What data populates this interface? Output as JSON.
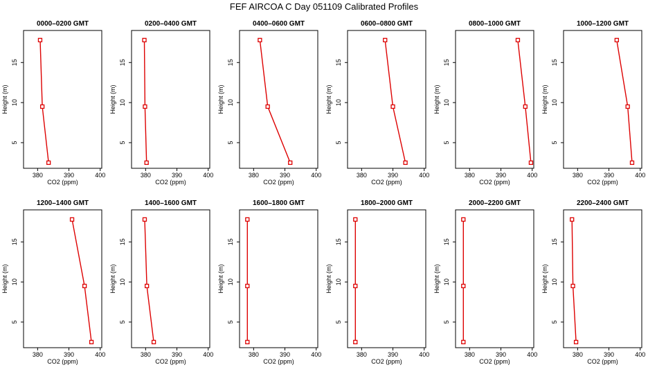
{
  "chart_data": {
    "type": "line",
    "title": "FEF AIRCOA C  Day 051109  Calibrated Profiles",
    "xlabel": "CO2 (ppm)",
    "ylabel": "Height (m)",
    "xlim": [
      375.5,
      400.5
    ],
    "ylim": [
      1.8,
      19
    ],
    "xticks": [
      "380",
      "390",
      "400"
    ],
    "yticks": [
      "5",
      "10",
      "15"
    ],
    "line_color": "#dd0000",
    "marker": "open-square",
    "grid": false,
    "panels": [
      {
        "title": "0000–0200 GMT",
        "x": [
          383.5,
          381.5,
          380.8
        ],
        "y": [
          2.5,
          9.5,
          17.8
        ]
      },
      {
        "title": "0200–0400 GMT",
        "x": [
          380.3,
          379.8,
          379.6
        ],
        "y": [
          2.5,
          9.5,
          17.8
        ]
      },
      {
        "title": "0400–0600 GMT",
        "x": [
          391.7,
          384.5,
          382.0
        ],
        "y": [
          2.5,
          9.5,
          17.8
        ]
      },
      {
        "title": "0600–0800 GMT",
        "x": [
          394.0,
          390.0,
          387.5
        ],
        "y": [
          2.5,
          9.5,
          17.8
        ]
      },
      {
        "title": "0800–1000 GMT",
        "x": [
          399.6,
          397.8,
          395.4
        ],
        "y": [
          2.5,
          9.5,
          17.8
        ]
      },
      {
        "title": "1000–1200 GMT",
        "x": [
          397.4,
          396.0,
          392.5
        ],
        "y": [
          2.5,
          9.5,
          17.8
        ]
      },
      {
        "title": "1200–1400 GMT",
        "x": [
          397.2,
          395.0,
          391.0
        ],
        "y": [
          2.5,
          9.5,
          17.8
        ]
      },
      {
        "title": "1400–1600 GMT",
        "x": [
          382.6,
          380.4,
          379.7
        ],
        "y": [
          2.5,
          9.5,
          17.8
        ]
      },
      {
        "title": "1600–1800 GMT",
        "x": [
          378.0,
          378.0,
          378.0
        ],
        "y": [
          2.5,
          9.5,
          17.8
        ]
      },
      {
        "title": "1800–2000 GMT",
        "x": [
          378.0,
          378.0,
          378.0
        ],
        "y": [
          2.5,
          9.5,
          17.8
        ]
      },
      {
        "title": "2000–2200 GMT",
        "x": [
          378.0,
          378.0,
          378.0
        ],
        "y": [
          2.5,
          9.5,
          17.8
        ]
      },
      {
        "title": "2200–2400 GMT",
        "x": [
          379.5,
          378.5,
          378.2
        ],
        "y": [
          2.5,
          9.5,
          17.8
        ]
      }
    ]
  }
}
